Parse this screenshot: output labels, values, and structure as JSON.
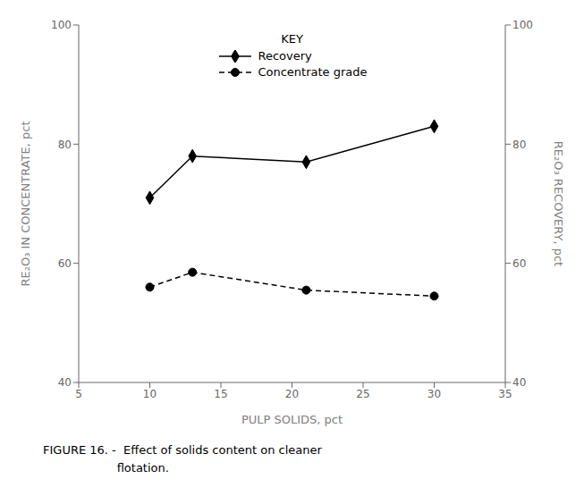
{
  "chart_data": {
    "type": "line",
    "x": [
      10,
      13,
      21,
      30
    ],
    "xlabel": "PULP SOLIDS,  pct",
    "ylabel": "RE₂O₃ IN CONCENTRATE,  pct",
    "y2label": "RE₂O₃ RECOVERY,  pct",
    "xlim": [
      5,
      35
    ],
    "xticks": [
      5,
      10,
      15,
      20,
      25,
      30,
      35
    ],
    "ylim": [
      40,
      100
    ],
    "yticks": [
      40,
      60,
      80,
      100
    ],
    "y2lim": [
      40,
      100
    ],
    "y2ticks": [
      40,
      60,
      80,
      100
    ],
    "legend": "upper center",
    "legend_title": "KEY",
    "grid": false,
    "series": [
      {
        "name": "Recovery",
        "color": "black",
        "marker": "diamond",
        "line_style": "solid",
        "values": [
          71,
          78,
          77,
          83
        ]
      },
      {
        "name": "Concentrate grade",
        "color": "black",
        "marker": "circle",
        "line_style": "dashed",
        "axis": "y2",
        "values": [
          56,
          58.5,
          55.5,
          54.5
        ]
      }
    ],
    "caption": [
      "FIGURE 16. -  Effect of solids content on cleaner",
      "                    flotation."
    ]
  }
}
